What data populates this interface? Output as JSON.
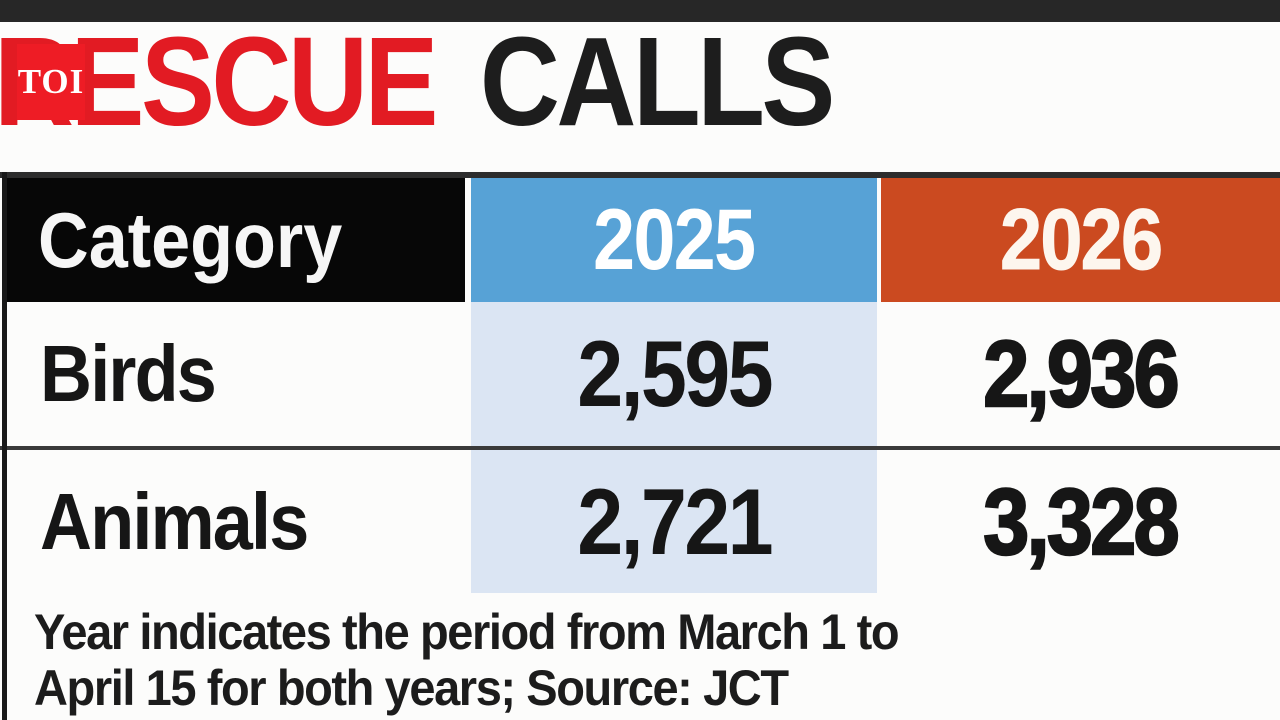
{
  "brand": {
    "logo": "TOI"
  },
  "title": {
    "highlight": "RESCUE",
    "rest": "CALLS"
  },
  "table": {
    "header": {
      "category": "Category",
      "col2025": "2025",
      "col2026": "2026"
    },
    "rows": [
      {
        "category": "Birds",
        "v2025": "2,595",
        "v2026": "2,936"
      },
      {
        "category": "Animals",
        "v2025": "2,721",
        "v2026": "3,328"
      }
    ]
  },
  "footnote": {
    "line1": "Year indicates the period from March 1 to",
    "line2": "April 15 for both years; Source: JCT"
  },
  "colors": {
    "title_red": "#e21b23",
    "logo_red": "#ee1c25",
    "header_black": "#070707",
    "col2025_blue": "#57a2d6",
    "col2026_orange": "#cb4a20",
    "col2025_tint": "#dbe5f3",
    "top_bar": "#272727"
  },
  "chart_data": {
    "type": "table",
    "title": "RESCUE CALLS",
    "categories": [
      "Birds",
      "Animals"
    ],
    "series": [
      {
        "name": "2025",
        "values": [
          2595,
          2721
        ]
      },
      {
        "name": "2026",
        "values": [
          2936,
          3328
        ]
      }
    ],
    "note": "Year indicates the period from March 1 to April 15 for both years; Source: JCT",
    "source": "JCT"
  }
}
